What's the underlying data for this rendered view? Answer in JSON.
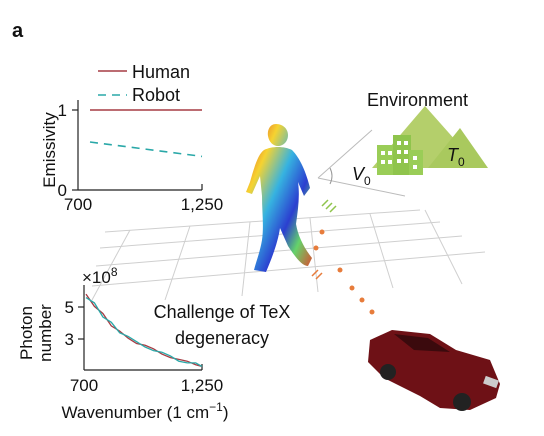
{
  "panel_label": "a",
  "colors": {
    "human": "#a63c44",
    "robot": "#2aa8a8",
    "mountain": "#b4cf6b",
    "building": "#9acd57",
    "car": "#6e1116",
    "grid": "#cfcfcf",
    "dots": "#e77c3b"
  },
  "environment": {
    "label": "Environment",
    "v_label": "V",
    "v_sub": "0",
    "t_label": "T",
    "t_sub": "0"
  },
  "annotation": {
    "line1": "Challenge of TeX",
    "line2": "degeneracy"
  },
  "chart_data": [
    {
      "type": "line",
      "ylabel": "Emissivity",
      "x_ticks": [
        "700",
        "1,250"
      ],
      "y_ticks": [
        "0",
        "1"
      ],
      "xlim": [
        700,
        1250
      ],
      "ylim": [
        0,
        1
      ],
      "series": [
        {
          "name": "Human",
          "style": "solid",
          "x": [
            700,
            1250
          ],
          "values": [
            1.0,
            1.0
          ]
        },
        {
          "name": "Robot",
          "style": "dashed",
          "x": [
            700,
            1250
          ],
          "values": [
            0.6,
            0.42
          ]
        }
      ]
    },
    {
      "type": "line",
      "xlabel": "Wavenumber (1 cm",
      "xlabel_sup": "−1",
      "xlabel_end": ")",
      "ylabel_line1": "Photon",
      "ylabel_line2": "number",
      "multiplier": "×10",
      "multiplier_exp": "8",
      "x_ticks": [
        "700",
        "1,250"
      ],
      "y_ticks": [
        "3",
        "5"
      ],
      "xlim": [
        700,
        1250
      ],
      "ylim": [
        1.8,
        6.5
      ],
      "series": [
        {
          "color_key": "human",
          "x": [
            700,
            740,
            780,
            820,
            860,
            900,
            940,
            980,
            1020,
            1060,
            1100,
            1140,
            1180,
            1220,
            1250
          ],
          "values": [
            6.1,
            5.4,
            5.0,
            4.3,
            4.0,
            3.6,
            3.3,
            3.2,
            3.0,
            2.7,
            2.5,
            2.4,
            2.3,
            2.1,
            2.0
          ]
        },
        {
          "color_key": "robot",
          "x": [
            700,
            740,
            780,
            820,
            860,
            900,
            940,
            980,
            1020,
            1060,
            1100,
            1140,
            1180,
            1220,
            1250
          ],
          "values": [
            5.9,
            5.6,
            4.8,
            4.5,
            3.9,
            3.7,
            3.4,
            3.1,
            2.9,
            2.8,
            2.6,
            2.3,
            2.2,
            2.2,
            2.0
          ]
        }
      ]
    }
  ]
}
